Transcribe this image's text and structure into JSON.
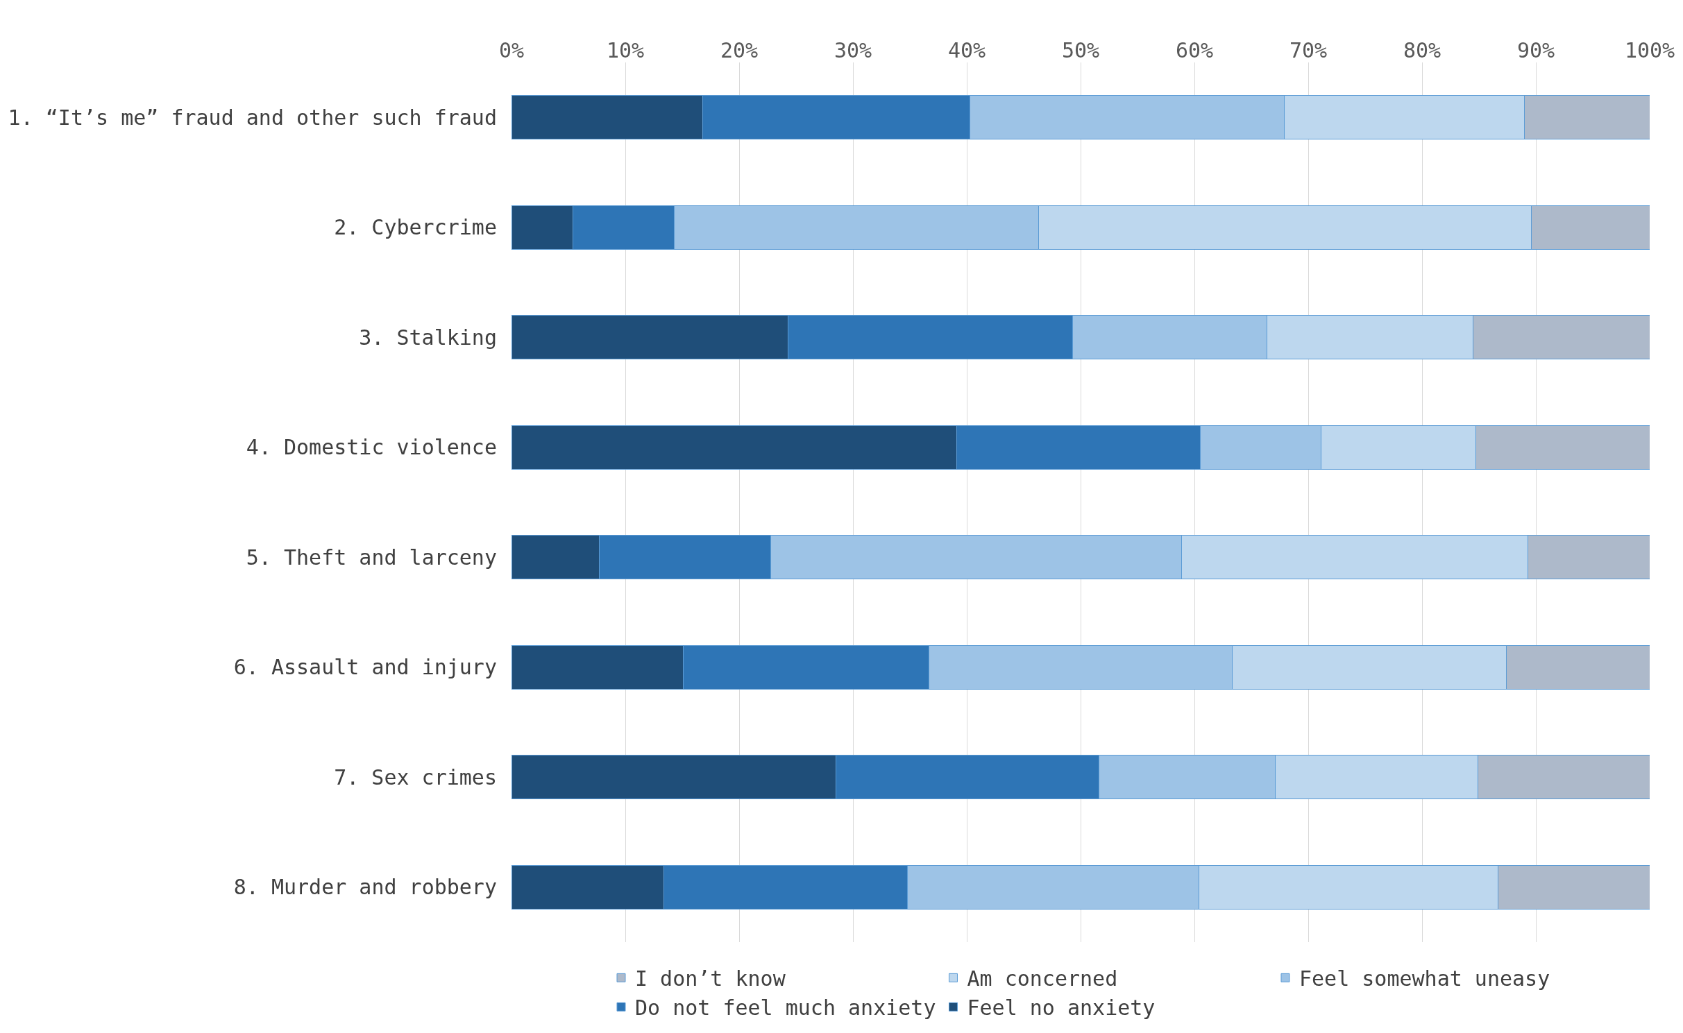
{
  "chart_data": {
    "type": "bar",
    "orientation": "horizontal",
    "stacked": true,
    "categories": [
      "1. “It’s me” fraud and other such fraud",
      "2. Cybercrime",
      "3. Stalking",
      "4. Domestic violence",
      "5. Theft and larceny",
      "6. Assault and injury",
      "7. Sex crimes",
      "8. Murder and robbery"
    ],
    "series": [
      {
        "name": "Feel no anxiety",
        "color": "#1f4e79",
        "values": [
          16.8,
          5.4,
          24.3,
          39.1,
          7.7,
          15.1,
          28.5,
          13.4
        ]
      },
      {
        "name": "Do not feel much anxiety",
        "color": "#2e75b6",
        "values": [
          23.5,
          8.9,
          25.0,
          21.4,
          15.1,
          21.6,
          23.1,
          21.4
        ]
      },
      {
        "name": "Feel somewhat uneasy",
        "color": "#9dc3e6",
        "values": [
          27.6,
          32.0,
          17.1,
          10.6,
          36.1,
          26.6,
          15.5,
          25.6
        ]
      },
      {
        "name": "Am concerned",
        "color": "#bdd7ee",
        "values": [
          21.1,
          43.3,
          18.1,
          13.6,
          30.4,
          24.1,
          17.8,
          26.3
        ]
      },
      {
        "name": "I don’t know",
        "color": "#adb9ca",
        "values": [
          11.0,
          10.4,
          15.5,
          15.3,
          10.7,
          12.6,
          15.1,
          13.3
        ]
      }
    ],
    "xlim": [
      0,
      100
    ],
    "xticks": [
      {
        "value": 0,
        "label": "0%"
      },
      {
        "value": 10,
        "label": "10%"
      },
      {
        "value": 20,
        "label": "20%"
      },
      {
        "value": 30,
        "label": "30%"
      },
      {
        "value": 40,
        "label": "40%"
      },
      {
        "value": 50,
        "label": "50%"
      },
      {
        "value": 60,
        "label": "60%"
      },
      {
        "value": 70,
        "label": "70%"
      },
      {
        "value": 80,
        "label": "80%"
      },
      {
        "value": 90,
        "label": "90%"
      },
      {
        "value": 100,
        "label": "100%"
      }
    ],
    "grid": "x",
    "legend": "bottom"
  }
}
